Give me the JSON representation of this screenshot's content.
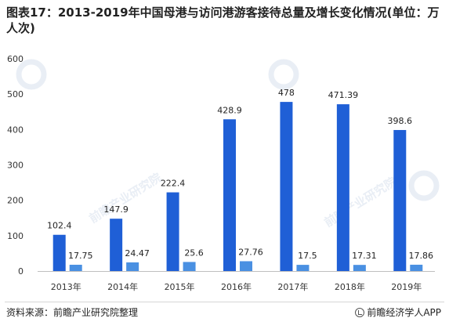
{
  "title": "图表17：2013-2019年中国母港与访问港游客接待总量及增长变化情况(单位：万人次)",
  "source": "资料来源：前瞻产业研究院整理",
  "brand": "前瞻经济学人APP",
  "watermark": "前瞻产业研究院",
  "chart_data": {
    "type": "bar",
    "categories": [
      "2013年",
      "2014年",
      "2015年",
      "2016年",
      "2017年",
      "2018年",
      "2019年"
    ],
    "series": [
      {
        "values": [
          102.4,
          147.9,
          222.4,
          428.9,
          478,
          471.39,
          398.6
        ],
        "color": "#1f5fd6"
      },
      {
        "values": [
          17.75,
          24.47,
          25.6,
          27.76,
          17.5,
          17.31,
          17.86
        ],
        "color": "#4a90e2"
      }
    ],
    "ylim": [
      0,
      600
    ],
    "yticks": [
      0,
      100,
      200,
      300,
      400,
      500,
      600
    ],
    "grid": false,
    "legend": "none"
  }
}
